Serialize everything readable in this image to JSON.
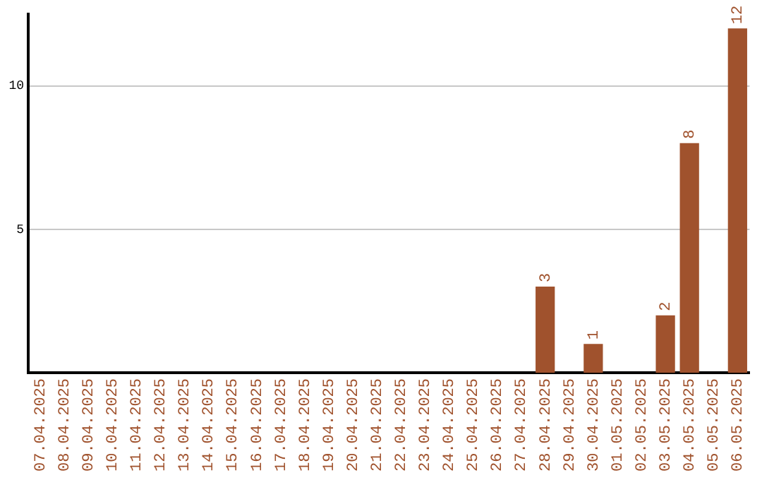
{
  "chart_data": {
    "type": "bar",
    "categories": [
      "07.04.2025",
      "08.04.2025",
      "09.04.2025",
      "10.04.2025",
      "11.04.2025",
      "12.04.2025",
      "13.04.2025",
      "14.04.2025",
      "15.04.2025",
      "16.04.2025",
      "17.04.2025",
      "18.04.2025",
      "19.04.2025",
      "20.04.2025",
      "21.04.2025",
      "22.04.2025",
      "23.04.2025",
      "24.04.2025",
      "25.04.2025",
      "26.04.2025",
      "27.04.2025",
      "28.04.2025",
      "29.04.2025",
      "30.04.2025",
      "01.05.2025",
      "02.05.2025",
      "03.05.2025",
      "04.05.2025",
      "05.05.2025",
      "06.05.2025"
    ],
    "values": [
      0,
      0,
      0,
      0,
      0,
      0,
      0,
      0,
      0,
      0,
      0,
      0,
      0,
      0,
      0,
      0,
      0,
      0,
      0,
      0,
      0,
      3,
      0,
      1,
      0,
      0,
      2,
      8,
      0,
      12
    ],
    "value_labels": [
      null,
      null,
      null,
      null,
      null,
      null,
      null,
      null,
      null,
      null,
      null,
      null,
      null,
      null,
      null,
      null,
      null,
      null,
      null,
      null,
      null,
      "3",
      null,
      "1",
      null,
      null,
      "2",
      "8",
      null,
      "12"
    ],
    "color": "#a0522d",
    "ylim": [
      0,
      12.5
    ],
    "yticks": [
      5,
      10
    ],
    "grid": "y"
  }
}
